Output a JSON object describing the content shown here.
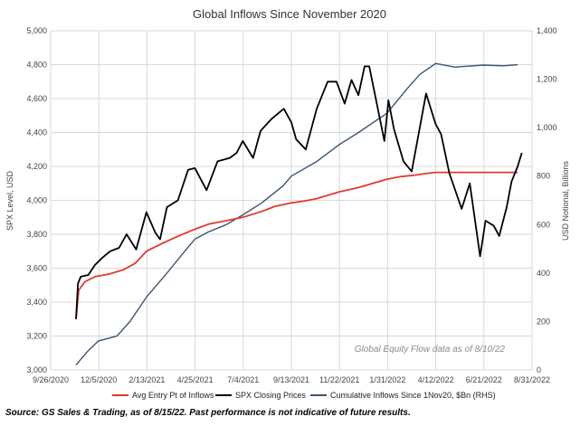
{
  "chart_data": {
    "type": "line",
    "title": "Global Inflows Since November 2020",
    "ylabel_left": "SPX Level, USD",
    "ylabel_right": "USD Notional, Billions",
    "annotation": "Global Equity Flow data as of 8/10/22",
    "source": "Source: GS Sales & Trading, as of 8/15/22. Past performance is not indicative of future results.",
    "x_tick_labels": [
      "9/26/2020",
      "12/5/2020",
      "2/13/2021",
      "4/25/2021",
      "7/4/2021",
      "9/13/2021",
      "11/22/2021",
      "1/31/2022",
      "4/12/2022",
      "6/21/2022",
      "8/31/2022"
    ],
    "x_range": [
      "2020-09-26",
      "2022-08-31"
    ],
    "ylim_left": [
      3000,
      5000
    ],
    "y_ticks_left": [
      "3,000",
      "3,200",
      "3,400",
      "3,600",
      "3,800",
      "4,000",
      "4,200",
      "4,400",
      "4,600",
      "4,800",
      "5,000"
    ],
    "ylim_right": [
      0,
      1400
    ],
    "y_ticks_right": [
      "0",
      "200",
      "400",
      "600",
      "800",
      "1,000",
      "1,200",
      "1,400"
    ],
    "grid": true,
    "legend_position": "bottom",
    "series": [
      {
        "name": "Avg Entry Pt of Inflows",
        "axis": "left",
        "color": "#e03a2f",
        "x": [
          "2020-11-02",
          "2020-11-06",
          "2020-11-15",
          "2020-11-30",
          "2020-12-20",
          "2021-01-10",
          "2021-01-28",
          "2021-02-13",
          "2021-03-10",
          "2021-04-01",
          "2021-04-25",
          "2021-05-15",
          "2021-06-10",
          "2021-07-04",
          "2021-08-01",
          "2021-08-20",
          "2021-09-13",
          "2021-10-01",
          "2021-10-20",
          "2021-11-22",
          "2021-12-20",
          "2022-01-10",
          "2022-01-31",
          "2022-02-20",
          "2022-03-15",
          "2022-04-01",
          "2022-04-12",
          "2022-05-15",
          "2022-06-21",
          "2022-07-20",
          "2022-08-10"
        ],
        "values": [
          3300,
          3470,
          3520,
          3550,
          3565,
          3590,
          3630,
          3700,
          3750,
          3790,
          3830,
          3860,
          3880,
          3900,
          3935,
          3965,
          3985,
          3995,
          4010,
          4050,
          4075,
          4100,
          4125,
          4140,
          4150,
          4160,
          4165,
          4165,
          4165,
          4165,
          4165
        ]
      },
      {
        "name": "SPX Closing Prices",
        "axis": "left",
        "color": "#000000",
        "x": [
          "2020-11-02",
          "2020-11-05",
          "2020-11-09",
          "2020-11-20",
          "2020-11-30",
          "2020-12-10",
          "2020-12-22",
          "2021-01-04",
          "2021-01-15",
          "2021-01-29",
          "2021-02-13",
          "2021-02-26",
          "2021-03-05",
          "2021-03-15",
          "2021-03-31",
          "2021-04-15",
          "2021-04-25",
          "2021-05-12",
          "2021-05-28",
          "2021-06-15",
          "2021-06-25",
          "2021-07-04",
          "2021-07-19",
          "2021-07-30",
          "2021-08-15",
          "2021-08-30",
          "2021-09-02",
          "2021-09-13",
          "2021-09-20",
          "2021-10-04",
          "2021-10-20",
          "2021-11-05",
          "2021-11-18",
          "2021-11-30",
          "2021-12-10",
          "2021-12-20",
          "2021-12-29",
          "2022-01-05",
          "2022-01-27",
          "2022-02-02",
          "2022-02-10",
          "2022-02-24",
          "2022-03-08",
          "2022-03-29",
          "2022-04-12",
          "2022-04-20",
          "2022-05-02",
          "2022-05-20",
          "2022-06-01",
          "2022-06-16",
          "2022-06-24",
          "2022-07-06",
          "2022-07-14",
          "2022-07-25",
          "2022-08-01",
          "2022-08-10",
          "2022-08-16"
        ],
        "values": [
          3300,
          3510,
          3550,
          3560,
          3620,
          3660,
          3700,
          3720,
          3800,
          3710,
          3930,
          3810,
          3770,
          3960,
          4000,
          4180,
          4190,
          4060,
          4230,
          4250,
          4280,
          4350,
          4250,
          4410,
          4480,
          4530,
          4540,
          4460,
          4360,
          4300,
          4540,
          4700,
          4700,
          4570,
          4710,
          4620,
          4790,
          4790,
          4350,
          4590,
          4420,
          4230,
          4170,
          4630,
          4450,
          4390,
          4160,
          3950,
          4100,
          3670,
          3880,
          3850,
          3790,
          3960,
          4110,
          4200,
          4280
        ]
      },
      {
        "name": "Cumulative Inflows Since 1Nov20, $Bn (RHS)",
        "axis": "right",
        "color": "#3b5573",
        "x": [
          "2020-11-02",
          "2020-11-20",
          "2020-12-05",
          "2021-01-01",
          "2021-01-20",
          "2021-02-13",
          "2021-03-15",
          "2021-04-10",
          "2021-04-25",
          "2021-05-15",
          "2021-06-10",
          "2021-07-04",
          "2021-08-01",
          "2021-09-01",
          "2021-09-13",
          "2021-10-20",
          "2021-11-22",
          "2021-12-20",
          "2022-01-31",
          "2022-03-01",
          "2022-03-20",
          "2022-04-12",
          "2022-05-10",
          "2022-06-21",
          "2022-07-20",
          "2022-08-10"
        ],
        "values": [
          20,
          80,
          120,
          140,
          200,
          300,
          400,
          490,
          540,
          570,
          600,
          640,
          690,
          760,
          800,
          860,
          930,
          980,
          1060,
          1160,
          1220,
          1265,
          1250,
          1258,
          1255,
          1260
        ]
      }
    ]
  }
}
